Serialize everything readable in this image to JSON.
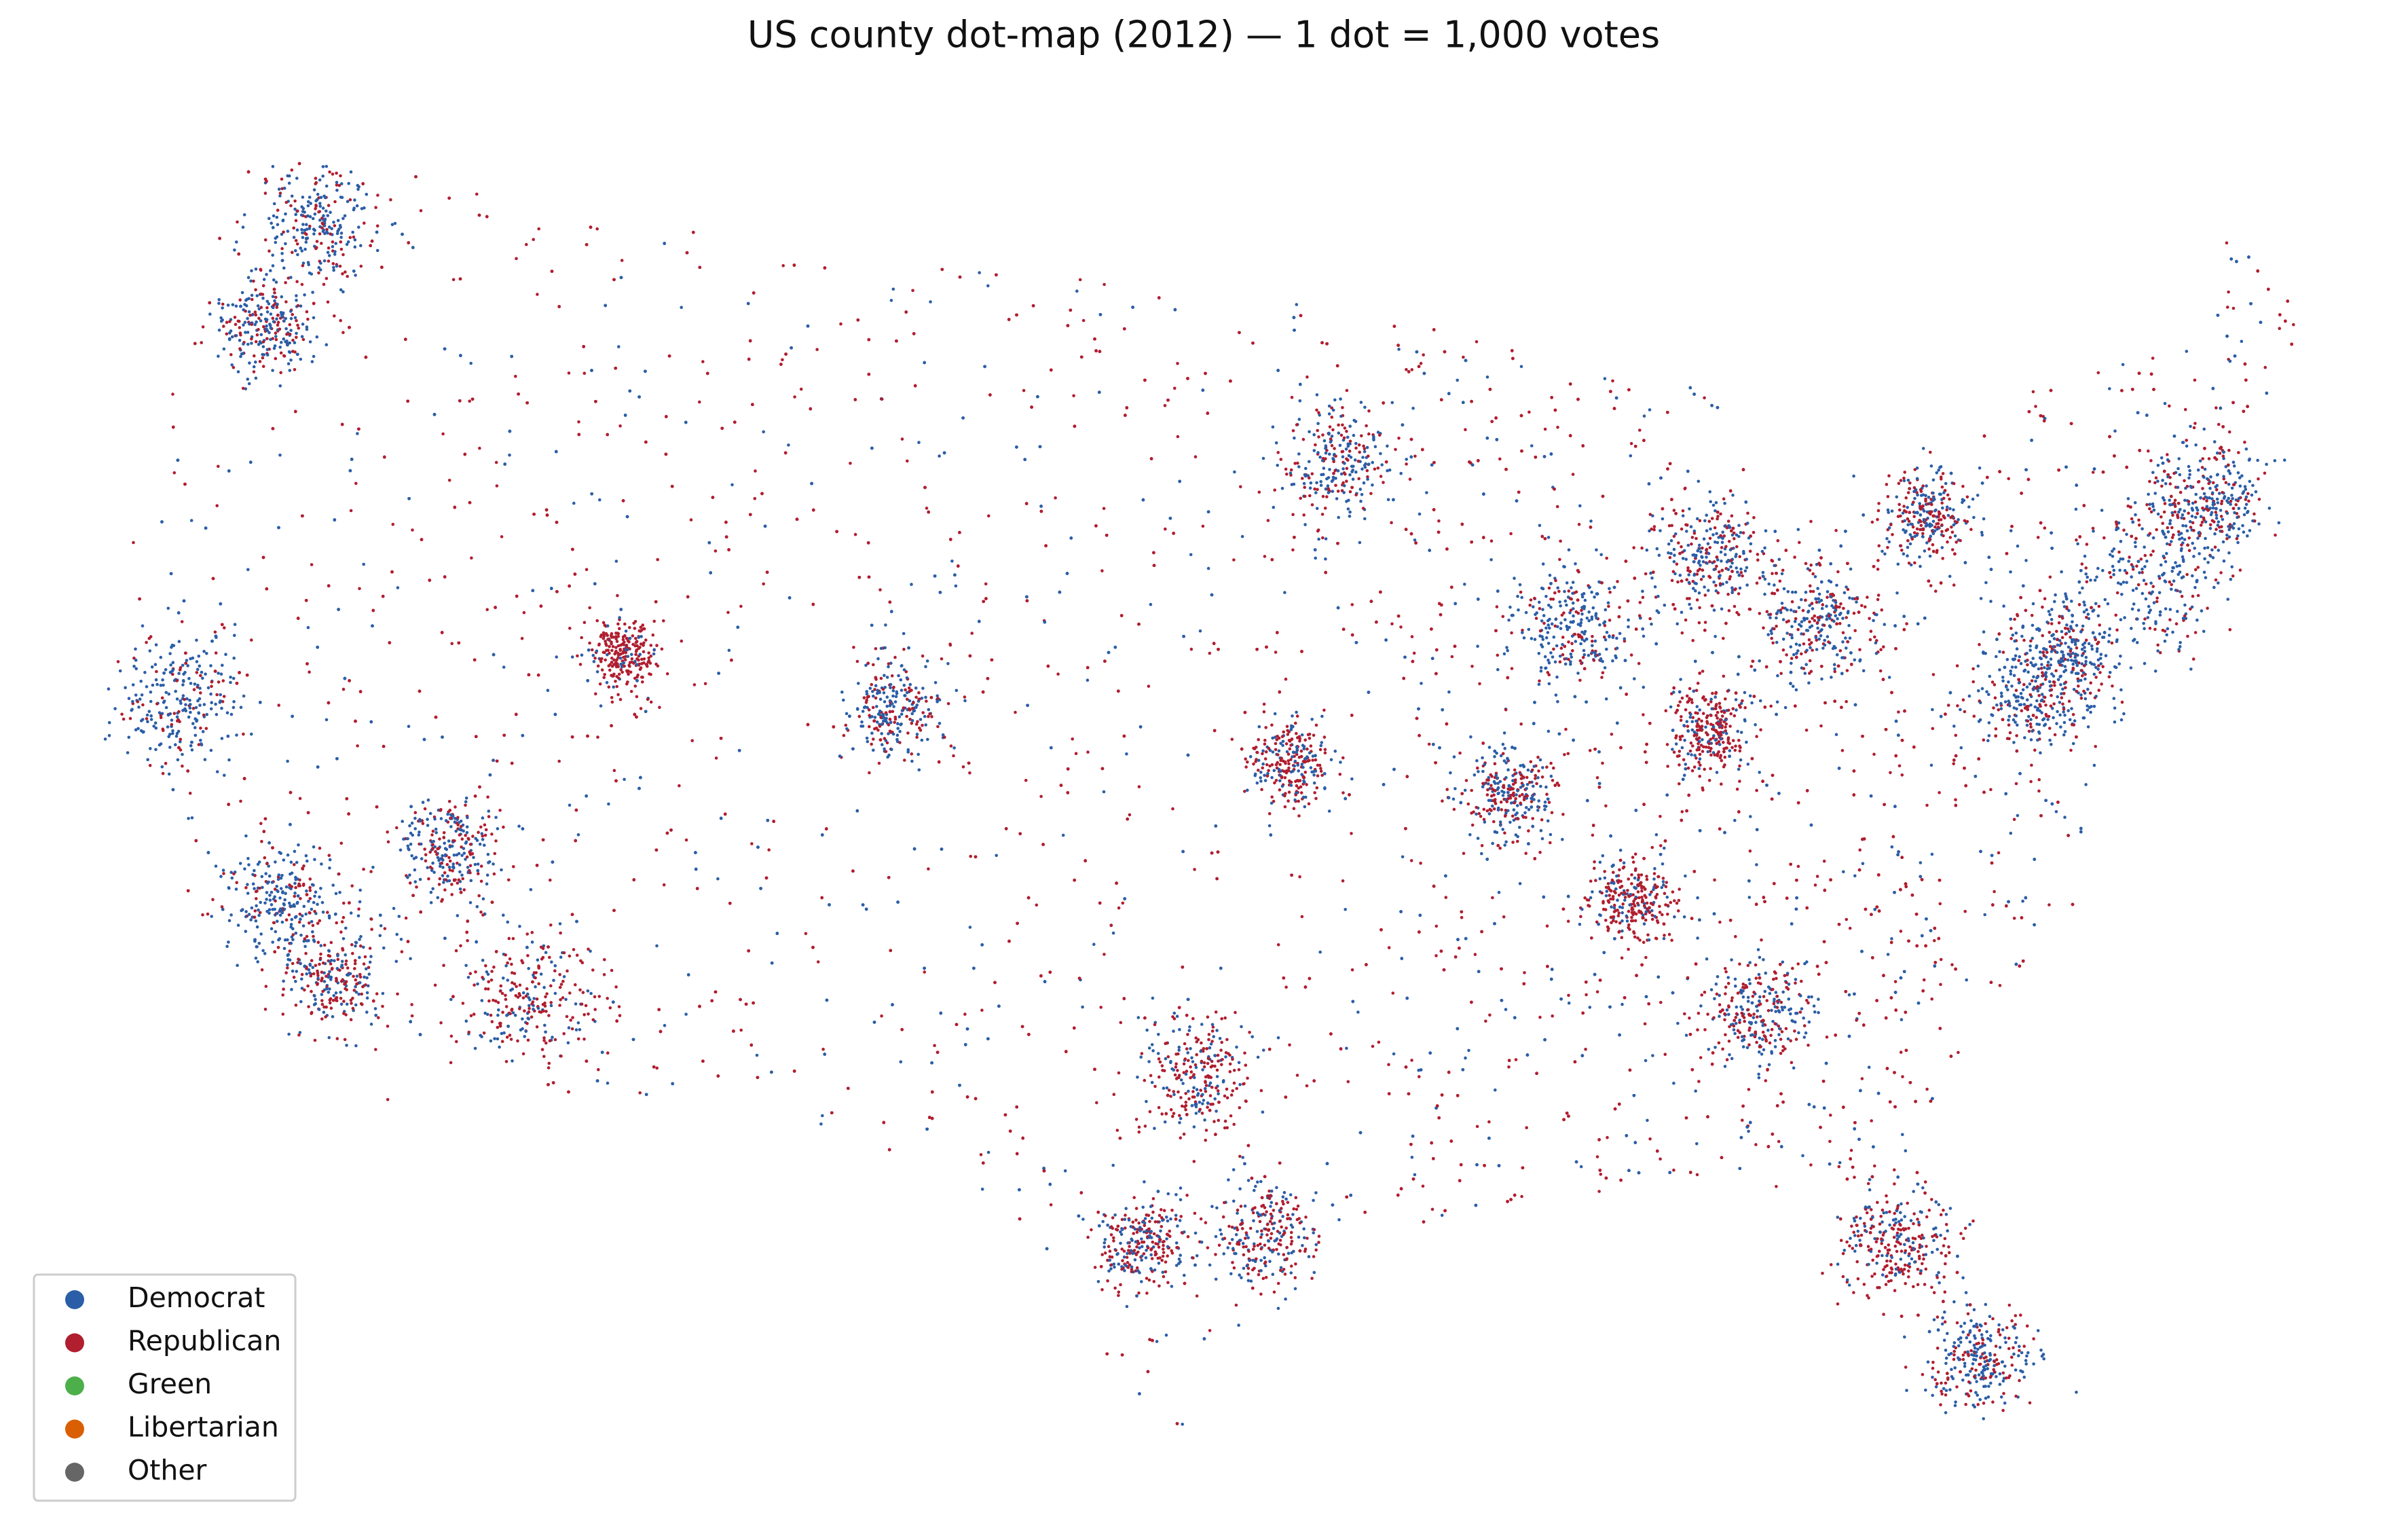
{
  "title": "US county dot-map (2012) — 1 dot = 1,000 votes",
  "legend": {
    "items": [
      {
        "name": "Democrat",
        "color": "#2b5ea7"
      },
      {
        "name": "Republican",
        "color": "#b01e2f"
      },
      {
        "name": "Green",
        "color": "#4daf4a"
      },
      {
        "name": "Libertarian",
        "color": "#d95f02"
      },
      {
        "name": "Other",
        "color": "#666666"
      }
    ]
  }
}
